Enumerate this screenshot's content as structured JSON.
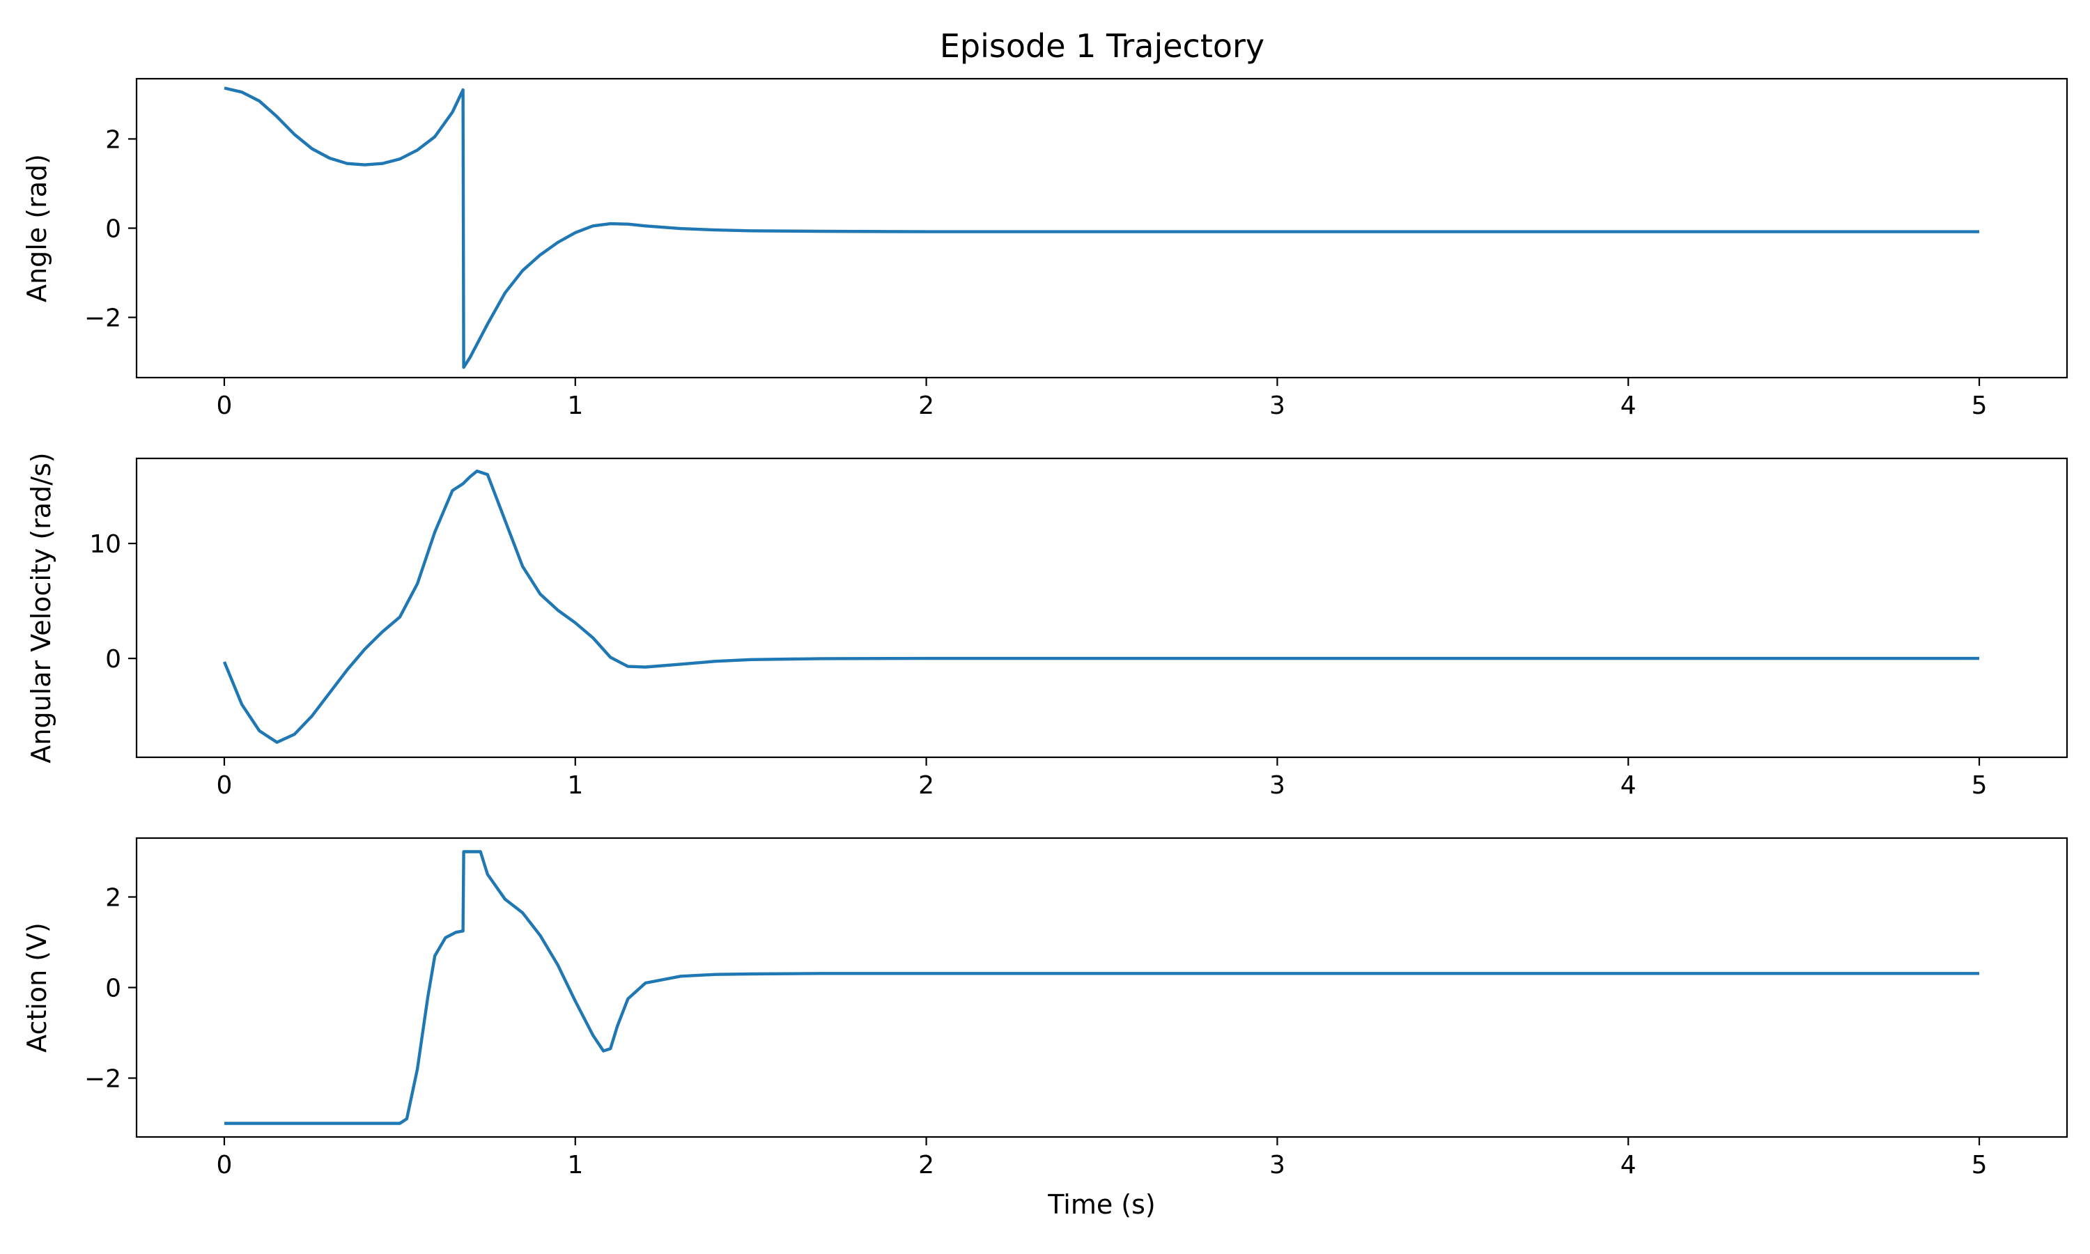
{
  "title": "Episode 1 Trajectory",
  "colors": {
    "series": "#1f77b4"
  },
  "chart_data": [
    {
      "type": "line",
      "name": "angle",
      "title": "Episode 1 Trajectory",
      "xlabel": "",
      "ylabel": "Angle (rad)",
      "xlim": [
        -0.25,
        5.25
      ],
      "ylim": [
        -3.35,
        3.35
      ],
      "xticks": [
        0,
        1,
        2,
        3,
        4,
        5
      ],
      "yticks": [
        -2,
        0,
        2
      ],
      "ytick_labels": [
        "−2",
        "0",
        "2"
      ],
      "grid": false,
      "x": [
        0,
        0.05,
        0.1,
        0.15,
        0.2,
        0.25,
        0.3,
        0.35,
        0.4,
        0.45,
        0.5,
        0.55,
        0.6,
        0.65,
        0.68,
        0.682,
        0.7,
        0.75,
        0.8,
        0.85,
        0.9,
        0.95,
        1.0,
        1.05,
        1.1,
        1.15,
        1.2,
        1.3,
        1.4,
        1.5,
        1.7,
        2.0,
        3.0,
        4.0,
        5.0
      ],
      "y": [
        3.14,
        3.05,
        2.85,
        2.5,
        2.1,
        1.78,
        1.57,
        1.45,
        1.42,
        1.45,
        1.55,
        1.75,
        2.05,
        2.6,
        3.1,
        -3.12,
        -2.9,
        -2.15,
        -1.45,
        -0.95,
        -0.6,
        -0.32,
        -0.1,
        0.05,
        0.1,
        0.09,
        0.05,
        -0.01,
        -0.04,
        -0.06,
        -0.07,
        -0.08,
        -0.08,
        -0.08,
        -0.08
      ]
    },
    {
      "type": "line",
      "name": "angular-velocity",
      "xlabel": "",
      "ylabel": "Angular Velocity (rad/s)",
      "xlim": [
        -0.25,
        5.25
      ],
      "ylim": [
        -8.6,
        17.4
      ],
      "xticks": [
        0,
        1,
        2,
        3,
        4,
        5
      ],
      "yticks": [
        0,
        10
      ],
      "ytick_labels": [
        "0",
        "10"
      ],
      "grid": false,
      "x": [
        0,
        0.05,
        0.1,
        0.15,
        0.2,
        0.25,
        0.3,
        0.35,
        0.4,
        0.45,
        0.5,
        0.55,
        0.6,
        0.65,
        0.68,
        0.7,
        0.72,
        0.75,
        0.8,
        0.85,
        0.9,
        0.95,
        1.0,
        1.05,
        1.1,
        1.15,
        1.2,
        1.3,
        1.4,
        1.5,
        1.7,
        2.0,
        3.0,
        4.0,
        5.0
      ],
      "y": [
        -0.3,
        -4.0,
        -6.3,
        -7.3,
        -6.6,
        -5.0,
        -3.0,
        -1.0,
        0.8,
        2.3,
        3.6,
        6.5,
        11.0,
        14.6,
        15.2,
        15.8,
        16.3,
        16.0,
        12.0,
        8.0,
        5.6,
        4.2,
        3.1,
        1.8,
        0.1,
        -0.7,
        -0.75,
        -0.5,
        -0.25,
        -0.1,
        -0.02,
        0,
        0,
        0,
        0
      ]
    },
    {
      "type": "line",
      "name": "action",
      "xlabel": "Time (s)",
      "ylabel": "Action (V)",
      "xlim": [
        -0.25,
        5.25
      ],
      "ylim": [
        -3.3,
        3.3
      ],
      "xticks": [
        0,
        1,
        2,
        3,
        4,
        5
      ],
      "yticks": [
        -2,
        0,
        2
      ],
      "ytick_labels": [
        "−2",
        "0",
        "2"
      ],
      "grid": false,
      "x": [
        0,
        0.5,
        0.52,
        0.55,
        0.58,
        0.6,
        0.63,
        0.66,
        0.68,
        0.682,
        0.7,
        0.73,
        0.75,
        0.8,
        0.85,
        0.9,
        0.95,
        1.0,
        1.05,
        1.08,
        1.1,
        1.12,
        1.15,
        1.2,
        1.3,
        1.4,
        1.5,
        1.7,
        2.0,
        3.0,
        4.0,
        5.0
      ],
      "y": [
        -3.0,
        -3.0,
        -2.9,
        -1.8,
        -0.2,
        0.7,
        1.1,
        1.22,
        1.25,
        3.0,
        3.0,
        3.0,
        2.5,
        1.95,
        1.65,
        1.15,
        0.5,
        -0.3,
        -1.05,
        -1.4,
        -1.35,
        -0.85,
        -0.25,
        0.1,
        0.25,
        0.29,
        0.3,
        0.31,
        0.31,
        0.31,
        0.31,
        0.31
      ]
    }
  ]
}
